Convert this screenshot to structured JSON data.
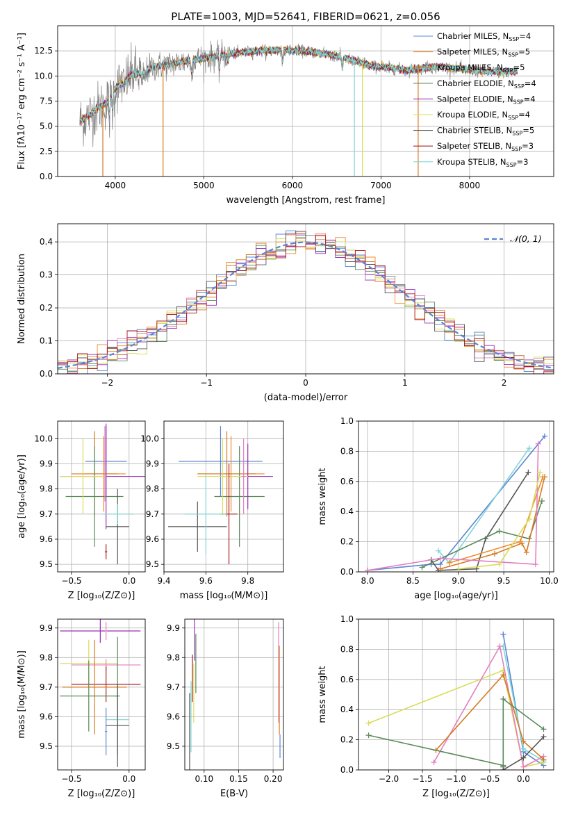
{
  "title": "PLATE=1003, MJD=52641, FIBERID=0621, z=0.056",
  "colors": {
    "Chabrier MILES": "#5b84d4",
    "Salpeter MILES": "#ef8a2a",
    "Kroupa MILES": "#d77a1f",
    "Chabrier ELODIE": "#5a8a5a",
    "Salpeter ELODIE": "#9a2fb8",
    "Kroupa ELODIE": "#d8dc5a",
    "Chabrier STELIB": "#555555",
    "Salpeter STELIB": "#a51e22",
    "Kroupa STELIB": "#7fd6d6",
    "extra_pink": "#e47fbf",
    "normal": "#5b84d4"
  },
  "chart_data": [
    {
      "id": "spectrum",
      "type": "line",
      "title": "PLATE=1003, MJD=52641, FIBERID=0621, z=0.056",
      "xlabel": "wavelength [Angstrom, rest frame]",
      "ylabel": "Flux [fλ10⁻¹⁷ erg cm⁻² s⁻¹ A⁻¹]",
      "xlim": [
        3350,
        8950
      ],
      "ylim": [
        0,
        15
      ],
      "xticks": [
        4000,
        5000,
        6000,
        7000,
        8000
      ],
      "yticks": [
        0.0,
        2.5,
        5.0,
        7.5,
        10.0,
        12.5
      ],
      "legend_position": "right",
      "legend": [
        {
          "label": "Chabrier MILES, N",
          "sub": "SSP",
          "suffix": "=4",
          "color": "#5b84d4"
        },
        {
          "label": "Salpeter MILES, N",
          "sub": "SSP",
          "suffix": "=5",
          "color": "#ef8a2a"
        },
        {
          "label": "Kroupa MILES, N",
          "sub": "SSP",
          "suffix": "=5",
          "color": "#d77a1f"
        },
        {
          "label": "Chabrier ELODIE, N",
          "sub": "SSP",
          "suffix": "=4",
          "color": "#5a8a5a"
        },
        {
          "label": "Salpeter ELODIE, N",
          "sub": "SSP",
          "suffix": "=4",
          "color": "#9a2fb8"
        },
        {
          "label": "Kroupa ELODIE, N",
          "sub": "SSP",
          "suffix": "=4",
          "color": "#d8dc5a"
        },
        {
          "label": "Chabrier STELIB, N",
          "sub": "SSP",
          "suffix": "=5",
          "color": "#555555"
        },
        {
          "label": "Salpeter STELIB, N",
          "sub": "SSP",
          "suffix": "=3",
          "color": "#a51e22"
        },
        {
          "label": "Kroupa STELIB, N",
          "sub": "SSP",
          "suffix": "=3",
          "color": "#7fd6d6"
        }
      ],
      "continuum": {
        "x": [
          3600,
          3700,
          3800,
          3900,
          4000,
          4100,
          4200,
          4300,
          4400,
          4500,
          4700,
          4900,
          5100,
          5300,
          5500,
          5700,
          5900,
          6100,
          6300,
          6500,
          6700,
          6900,
          7100,
          7300,
          7500,
          7700,
          7900,
          8100,
          8300,
          8500
        ],
        "y": [
          5.5,
          6.0,
          6.8,
          7.3,
          8.8,
          9.5,
          10.2,
          10.3,
          10.8,
          11.0,
          11.3,
          11.6,
          11.9,
          12.2,
          12.4,
          12.5,
          12.6,
          12.5,
          12.3,
          12.0,
          11.5,
          11.0,
          10.8,
          10.6,
          10.8,
          10.9,
          10.7,
          10.5,
          10.4,
          10.4
        ]
      },
      "model_spikes": [
        {
          "x": 3860,
          "color": "#d77a1f"
        },
        {
          "x": 4540,
          "color": "#d77a1f"
        },
        {
          "x": 6700,
          "color": "#7fd6d6"
        },
        {
          "x": 6790,
          "color": "#d8dc5a"
        },
        {
          "x": 7420,
          "color": "#d77a1f"
        }
      ]
    },
    {
      "id": "residuals",
      "type": "step",
      "xlabel": "(data-model)/error",
      "ylabel": "Normed distribution",
      "xlim": [
        -2.5,
        2.5
      ],
      "ylim": [
        0,
        0.455
      ],
      "xticks": [
        -2,
        -1,
        0,
        1,
        2
      ],
      "yticks": [
        0.0,
        0.1,
        0.2,
        0.3,
        0.4
      ],
      "legend_position": "top-right",
      "normal_label": "𝒩(0, 1)",
      "bin_width": 0.1,
      "series_count": 9
    },
    {
      "id": "age-vs-Z",
      "type": "errorbar",
      "xlabel": "Z [log₁₀(Z/Z⊙)]",
      "ylabel": "age  [log₁₀(age/yr)]",
      "xlim": [
        -0.62,
        0.14
      ],
      "ylim": [
        9.47,
        10.07
      ],
      "xticks": [
        -0.5,
        0.0
      ],
      "yticks": [
        9.5,
        9.6,
        9.7,
        9.8,
        9.9,
        10.0
      ],
      "points": [
        {
          "x": -0.2,
          "y": 9.91,
          "xe": 0.18,
          "ye": 0.14,
          "color": "#5b84d4"
        },
        {
          "x": -0.22,
          "y": 9.86,
          "xe": 0.19,
          "ye": 0.15,
          "color": "#ef8a2a"
        },
        {
          "x": -0.3,
          "y": 9.86,
          "xe": 0.2,
          "ye": 0.17,
          "color": "#d77a1f"
        },
        {
          "x": -0.3,
          "y": 9.77,
          "xe": 0.25,
          "ye": 0.2,
          "color": "#5a8a5a"
        },
        {
          "x": -0.2,
          "y": 9.85,
          "xe": 0.4,
          "ye": 0.21,
          "color": "#9a2fb8"
        },
        {
          "x": -0.4,
          "y": 9.85,
          "xe": 0.2,
          "ye": 0.15,
          "color": "#d8dc5a"
        },
        {
          "x": -0.1,
          "y": 9.65,
          "xe": 0.1,
          "ye": 0.15,
          "color": "#555555"
        },
        {
          "x": -0.2,
          "y": 9.55,
          "xe": 0.01,
          "ye": 0.03,
          "color": "#a51e22"
        },
        {
          "x": -0.1,
          "y": 9.7,
          "xe": 0.14,
          "ye": 0.04,
          "color": "#7fd6d6"
        },
        {
          "x": -0.21,
          "y": 9.9,
          "xe": 0.01,
          "ye": 0.15,
          "color": "#e47fbf"
        }
      ]
    },
    {
      "id": "age-vs-mass",
      "type": "errorbar",
      "xlabel": "mass [log₁₀(M/M⊙)]",
      "xlim": [
        9.4,
        9.97
      ],
      "ylim": [
        9.47,
        10.07
      ],
      "xticks": [
        9.4,
        9.6,
        9.8
      ],
      "yticks": [
        9.5,
        9.6,
        9.7,
        9.8,
        9.9,
        10.0
      ],
      "points": [
        {
          "x": 9.67,
          "y": 9.91,
          "xe": 0.2,
          "ye": 0.14,
          "color": "#5b84d4"
        },
        {
          "x": 9.72,
          "y": 9.86,
          "xe": 0.16,
          "ye": 0.15,
          "color": "#ef8a2a"
        },
        {
          "x": 9.7,
          "y": 9.86,
          "xe": 0.14,
          "ye": 0.17,
          "color": "#d77a1f"
        },
        {
          "x": 9.76,
          "y": 9.77,
          "xe": 0.12,
          "ye": 0.2,
          "color": "#5a8a5a"
        },
        {
          "x": 9.8,
          "y": 9.85,
          "xe": 0.12,
          "ye": 0.13,
          "color": "#9a2fb8"
        },
        {
          "x": 9.68,
          "y": 9.85,
          "xe": 0.12,
          "ye": 0.15,
          "color": "#d8dc5a"
        },
        {
          "x": 9.56,
          "y": 9.65,
          "xe": 0.14,
          "ye": 0.1,
          "color": "#555555"
        },
        {
          "x": 9.71,
          "y": 9.7,
          "xe": 0.04,
          "ye": 0.2,
          "color": "#a51e22"
        },
        {
          "x": 9.6,
          "y": 9.7,
          "xe": 0.1,
          "ye": 0.16,
          "color": "#7fd6d6"
        },
        {
          "x": 9.78,
          "y": 9.85,
          "xe": 0.01,
          "ye": 0.15,
          "color": "#e47fbf"
        }
      ]
    },
    {
      "id": "massweight-vs-age",
      "type": "line",
      "xlabel": "age  [log₁₀(age/yr)]",
      "ylabel": "mass weight",
      "xlim": [
        7.9,
        10.05
      ],
      "ylim": [
        0,
        1.0
      ],
      "xticks": [
        8.0,
        8.5,
        9.0,
        9.5,
        10.0
      ],
      "yticks": [
        0.0,
        0.2,
        0.4,
        0.6,
        0.8,
        1.0
      ],
      "series": [
        {
          "color": "#5b84d4",
          "x": [
            8.0,
            8.7,
            8.8,
            9.95
          ],
          "y": [
            0.01,
            0.05,
            0.05,
            0.9
          ]
        },
        {
          "color": "#7fd6d6",
          "x": [
            8.78,
            8.9,
            9.78
          ],
          "y": [
            0.14,
            0.06,
            0.82
          ]
        },
        {
          "color": "#555555",
          "x": [
            8.7,
            8.78,
            9.2,
            9.3,
            9.77
          ],
          "y": [
            0.08,
            0.01,
            0.02,
            0.22,
            0.66
          ]
        },
        {
          "color": "#5a8a5a",
          "x": [
            8.6,
            9.45,
            9.78,
            9.92
          ],
          "y": [
            0.03,
            0.27,
            0.22,
            0.47
          ]
        },
        {
          "color": "#d77a1f",
          "x": [
            8.8,
            9.4,
            9.7,
            9.75,
            9.95
          ],
          "y": [
            0.02,
            0.12,
            0.19,
            0.13,
            0.63
          ]
        },
        {
          "color": "#ef8a2a",
          "x": [
            8.9,
            9.68,
            9.93
          ],
          "y": [
            0.06,
            0.2,
            0.63
          ]
        },
        {
          "color": "#e47fbf",
          "x": [
            8.0,
            8.8,
            9.85,
            9.88
          ],
          "y": [
            0.01,
            0.09,
            0.05,
            0.85
          ]
        },
        {
          "color": "#d8dc5a",
          "x": [
            9.0,
            9.45,
            9.78,
            9.9
          ],
          "y": [
            0.02,
            0.05,
            0.35,
            0.66
          ]
        }
      ]
    },
    {
      "id": "mass-vs-Z",
      "type": "errorbar",
      "xlabel": "Z [log₁₀(Z/Z⊙)]",
      "ylabel": "mass [log₁₀(M/M⊙)]",
      "xlim": [
        -0.62,
        0.14
      ],
      "ylim": [
        9.42,
        9.93
      ],
      "xticks": [
        -0.5,
        0.0
      ],
      "yticks": [
        9.5,
        9.6,
        9.7,
        9.8,
        9.9
      ],
      "points": [
        {
          "x": -0.25,
          "y": 9.89,
          "xe": 0.35,
          "ye": 0.04,
          "color": "#9a2fb8"
        },
        {
          "x": -0.2,
          "y": 9.89,
          "xe": 0.01,
          "ye": 0.03,
          "color": "#e47fbf"
        },
        {
          "x": -0.35,
          "y": 9.78,
          "xe": 0.25,
          "ye": 0.08,
          "color": "#d8dc5a"
        },
        {
          "x": -0.2,
          "y": 9.775,
          "xe": 0.3,
          "ye": 0.02,
          "color": "#e47fbf"
        },
        {
          "x": -0.2,
          "y": 9.71,
          "xe": 0.3,
          "ye": 0.06,
          "color": "#a51e22"
        },
        {
          "x": -0.3,
          "y": 9.7,
          "xe": 0.28,
          "ye": 0.16,
          "color": "#d77a1f"
        },
        {
          "x": -0.35,
          "y": 9.67,
          "xe": 0.25,
          "ye": 0.12,
          "color": "#5a8a5a"
        },
        {
          "x": -0.1,
          "y": 9.67,
          "xe": 0.02,
          "ye": 0.2,
          "color": "#5a8a5a"
        },
        {
          "x": -0.1,
          "y": 9.59,
          "xe": 0.1,
          "ye": 0.04,
          "color": "#7fd6d6"
        },
        {
          "x": -0.2,
          "y": 9.55,
          "xe": 0.01,
          "ye": 0.08,
          "color": "#5b84d4"
        },
        {
          "x": -0.1,
          "y": 9.57,
          "xe": 0.1,
          "ye": 0.14,
          "color": "#555555"
        }
      ]
    },
    {
      "id": "mass-vs-ebv",
      "type": "errorbar",
      "xlabel": "E(B-V)",
      "xlim": [
        0.072,
        0.215
      ],
      "ylim": [
        9.42,
        9.93
      ],
      "xticks": [
        0.1,
        0.15,
        0.2
      ],
      "yticks": [
        9.5,
        9.6,
        9.7,
        9.8,
        9.9
      ],
      "points": [
        {
          "x": 0.086,
          "y": 9.86,
          "xe": 0.0,
          "ye": 0.07,
          "color": "#9a2fb8"
        },
        {
          "x": 0.088,
          "y": 9.78,
          "xe": 0.0,
          "ye": 0.1,
          "color": "#5a8a5a"
        },
        {
          "x": 0.083,
          "y": 9.73,
          "xe": 0.0,
          "ye": 0.08,
          "color": "#a51e22"
        },
        {
          "x": 0.079,
          "y": 9.55,
          "xe": 0.0,
          "ye": 0.13,
          "color": "#555555"
        },
        {
          "x": 0.085,
          "y": 9.68,
          "xe": 0.0,
          "ye": 0.1,
          "color": "#d8dc5a"
        },
        {
          "x": 0.081,
          "y": 9.6,
          "xe": 0.0,
          "ye": 0.12,
          "color": "#7fd6d6"
        },
        {
          "x": 0.208,
          "y": 9.75,
          "xe": 0.0,
          "ye": 0.17,
          "color": "#e47fbf"
        },
        {
          "x": 0.209,
          "y": 9.69,
          "xe": 0.0,
          "ye": 0.15,
          "color": "#d77a1f"
        },
        {
          "x": 0.21,
          "y": 9.5,
          "xe": 0.0,
          "ye": 0.04,
          "color": "#5b84d4"
        }
      ]
    },
    {
      "id": "massweight-vs-Z",
      "type": "line",
      "xlabel": "Z [log₁₀(Z/Z⊙)]",
      "ylabel": "mass weight",
      "xlim": [
        -2.45,
        0.45
      ],
      "ylim": [
        0,
        1.0
      ],
      "xticks": [
        -2.0,
        -1.5,
        -1.0,
        -0.5,
        0.0
      ],
      "yticks": [
        0.0,
        0.2,
        0.4,
        0.6,
        0.8,
        1.0
      ],
      "series": [
        {
          "color": "#5b84d4",
          "x": [
            -0.3,
            0.0,
            0.3
          ],
          "y": [
            0.9,
            0.12,
            0.03
          ]
        },
        {
          "color": "#7fd6d6",
          "x": [
            -0.3,
            0.0,
            0.3
          ],
          "y": [
            0.82,
            0.14,
            0.06
          ]
        },
        {
          "color": "#d8dc5a",
          "x": [
            -2.3,
            -0.3,
            0.0,
            0.3
          ],
          "y": [
            0.31,
            0.66,
            0.02,
            0.05
          ]
        },
        {
          "color": "#e47fbf",
          "x": [
            -1.33,
            -0.35,
            0.0,
            0.3
          ],
          "y": [
            0.05,
            0.82,
            0.02,
            0.09
          ]
        },
        {
          "color": "#d77a1f",
          "x": [
            -1.3,
            -0.3,
            0.0,
            0.3
          ],
          "y": [
            0.13,
            0.63,
            0.19,
            0.07
          ]
        },
        {
          "color": "#555555",
          "x": [
            -0.3,
            -0.3,
            0.0,
            0.3
          ],
          "y": [
            0.02,
            0.0,
            0.08,
            0.22
          ]
        },
        {
          "color": "#5a8a5a",
          "x": [
            -2.3,
            -0.3,
            -0.3,
            0.3
          ],
          "y": [
            0.23,
            0.03,
            0.47,
            0.27
          ]
        }
      ]
    }
  ]
}
